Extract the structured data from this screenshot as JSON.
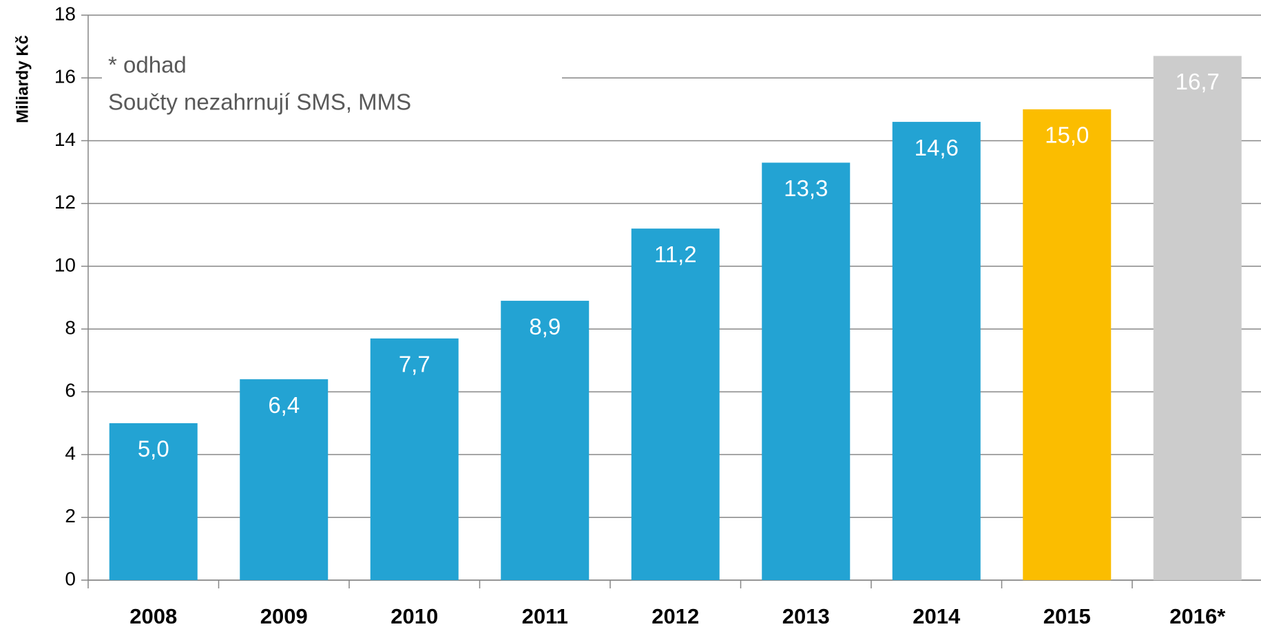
{
  "chart_data": {
    "type": "bar",
    "y_label": "Miliardy Kč",
    "annotations": [
      "* odhad",
      "Součty nezahrnují  SMS, MMS"
    ],
    "categories": [
      "2008",
      "2009",
      "2010",
      "2011",
      "2012",
      "2013",
      "2014",
      "2015",
      "2016*"
    ],
    "values": [
      5.0,
      6.4,
      7.7,
      8.9,
      11.2,
      13.3,
      14.6,
      15.0,
      16.7
    ],
    "value_labels": [
      "5,0",
      "6,4",
      "7,7",
      "8,9",
      "11,2",
      "13,3",
      "14,6",
      "15,0",
      "16,7"
    ],
    "colors": [
      "#23a3d3",
      "#23a3d3",
      "#23a3d3",
      "#23a3d3",
      "#23a3d3",
      "#23a3d3",
      "#23a3d3",
      "#fbbd00",
      "#cccccc"
    ],
    "ylim": [
      0,
      18
    ],
    "yticks": [
      0,
      2,
      4,
      6,
      8,
      10,
      12,
      14,
      16,
      18
    ],
    "grid": true
  }
}
